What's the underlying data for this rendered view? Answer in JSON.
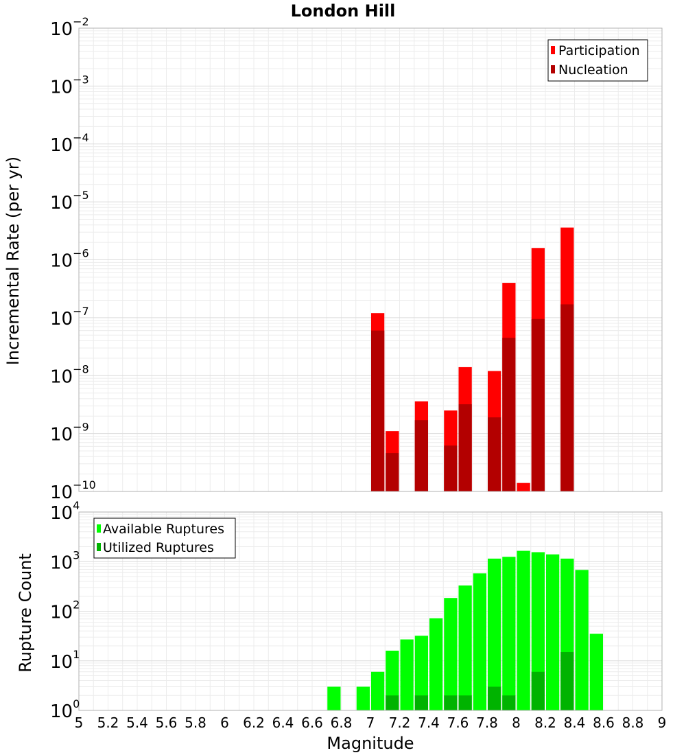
{
  "chart_data": [
    {
      "type": "bar",
      "title": "London Hill",
      "ylabel": "Incremental Rate (per yr)",
      "yscale": "log",
      "ylim_exp": [
        -10,
        -2
      ],
      "y_tick_exponents": [
        -10,
        -9,
        -8,
        -7,
        -6,
        -5,
        -4,
        -3,
        -2
      ],
      "xlim": [
        5,
        9
      ],
      "bin_width": 0.1,
      "grid": true,
      "legend_position": "top-right",
      "series": [
        {
          "name": "Participation",
          "color": "#ff0000",
          "points": [
            {
              "x": 7.05,
              "y": 1.2e-07
            },
            {
              "x": 7.15,
              "y": 1.1e-09
            },
            {
              "x": 7.35,
              "y": 3.6e-09
            },
            {
              "x": 7.55,
              "y": 2.5e-09
            },
            {
              "x": 7.65,
              "y": 1.4e-08
            },
            {
              "x": 7.85,
              "y": 1.2e-08
            },
            {
              "x": 7.95,
              "y": 4e-07
            },
            {
              "x": 8.05,
              "y": 1.4e-10
            },
            {
              "x": 8.15,
              "y": 1.6e-06
            },
            {
              "x": 8.35,
              "y": 3.6e-06
            }
          ]
        },
        {
          "name": "Nucleation",
          "color": "#b30000",
          "points": [
            {
              "x": 7.05,
              "y": 6e-08
            },
            {
              "x": 7.15,
              "y": 4.6e-10
            },
            {
              "x": 7.35,
              "y": 1.7e-09
            },
            {
              "x": 7.55,
              "y": 6.2e-10
            },
            {
              "x": 7.65,
              "y": 3.2e-09
            },
            {
              "x": 7.85,
              "y": 1.9e-09
            },
            {
              "x": 7.95,
              "y": 4.5e-08
            },
            {
              "x": 8.15,
              "y": 9.5e-08
            },
            {
              "x": 8.35,
              "y": 1.7e-07
            }
          ]
        }
      ]
    },
    {
      "type": "bar",
      "ylabel": "Rupture Count",
      "xlabel": "Magnitude",
      "yscale": "log",
      "ylim_exp": [
        0,
        4
      ],
      "y_tick_exponents": [
        0,
        1,
        2,
        3,
        4
      ],
      "xlim": [
        5,
        9
      ],
      "bin_width": 0.1,
      "grid": true,
      "legend_position": "top-left",
      "x_ticks": [
        "5",
        "5.2",
        "5.4",
        "5.6",
        "5.8",
        "6",
        "6.2",
        "6.4",
        "6.6",
        "6.8",
        "7",
        "7.2",
        "7.4",
        "7.6",
        "7.8",
        "8",
        "8.2",
        "8.4",
        "8.6",
        "8.8",
        "9"
      ],
      "series": [
        {
          "name": "Available Ruptures",
          "color": "#00ff00",
          "points": [
            {
              "x": 6.75,
              "y": 3
            },
            {
              "x": 6.95,
              "y": 3
            },
            {
              "x": 7.05,
              "y": 6
            },
            {
              "x": 7.15,
              "y": 16
            },
            {
              "x": 7.25,
              "y": 27
            },
            {
              "x": 7.35,
              "y": 32
            },
            {
              "x": 7.45,
              "y": 72
            },
            {
              "x": 7.55,
              "y": 185
            },
            {
              "x": 7.65,
              "y": 330
            },
            {
              "x": 7.75,
              "y": 580
            },
            {
              "x": 7.85,
              "y": 1150
            },
            {
              "x": 7.95,
              "y": 1250
            },
            {
              "x": 8.05,
              "y": 1650
            },
            {
              "x": 8.15,
              "y": 1550
            },
            {
              "x": 8.25,
              "y": 1400
            },
            {
              "x": 8.35,
              "y": 1150
            },
            {
              "x": 8.45,
              "y": 680
            },
            {
              "x": 8.55,
              "y": 35
            }
          ]
        },
        {
          "name": "Utilized Ruptures",
          "color": "#00b300",
          "points": [
            {
              "x": 7.05,
              "y": 1
            },
            {
              "x": 7.15,
              "y": 2
            },
            {
              "x": 7.35,
              "y": 2
            },
            {
              "x": 7.55,
              "y": 2
            },
            {
              "x": 7.65,
              "y": 2
            },
            {
              "x": 7.85,
              "y": 3
            },
            {
              "x": 7.95,
              "y": 2
            },
            {
              "x": 8.05,
              "y": 1
            },
            {
              "x": 8.15,
              "y": 6
            },
            {
              "x": 8.35,
              "y": 15
            }
          ]
        }
      ]
    }
  ]
}
